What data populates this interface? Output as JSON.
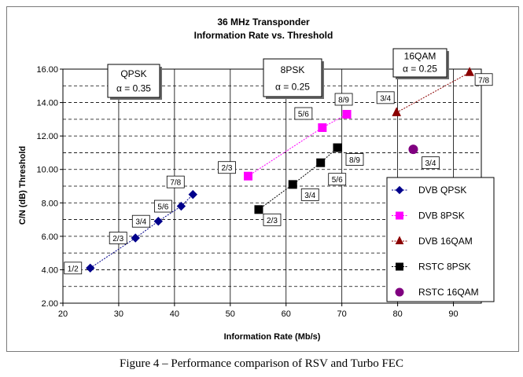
{
  "caption": "Figure 4 – Performance comparison of RSV and Turbo FEC",
  "chart_data": {
    "type": "scatter",
    "title": "36 MHz Transponder",
    "subtitle": "Information Rate vs. Threshold",
    "xlabel": "Information Rate (Mb/s)",
    "ylabel": "C/N (dB) Threshold",
    "xlim": [
      20,
      95
    ],
    "ylim": [
      2,
      16
    ],
    "xticks": [
      "20",
      "30",
      "40",
      "50",
      "60",
      "70",
      "80",
      "90"
    ],
    "yticks": [
      "2.00",
      "4.00",
      "6.00",
      "8.00",
      "10.00",
      "12.00",
      "14.00",
      "16.00"
    ],
    "grid": true,
    "legend_position": "right",
    "series": [
      {
        "name": "DVB QPSK",
        "color": "#00008b",
        "marker": "diamond",
        "line": true,
        "points": [
          {
            "x": 24.9,
            "y": 4.1,
            "label": "1/2"
          },
          {
            "x": 33.0,
            "y": 5.9,
            "label": "2/3"
          },
          {
            "x": 37.1,
            "y": 6.9,
            "label": "3/4"
          },
          {
            "x": 41.2,
            "y": 7.8,
            "label": "5/6"
          },
          {
            "x": 43.3,
            "y": 8.5,
            "label": "7/8"
          }
        ]
      },
      {
        "name": "DVB 8PSK",
        "color": "#ff00ff",
        "marker": "square",
        "line": true,
        "points": [
          {
            "x": 53.2,
            "y": 9.6,
            "label": "2/3"
          },
          {
            "x": 66.5,
            "y": 12.5,
            "label": "5/6"
          },
          {
            "x": 70.9,
            "y": 13.3,
            "label": "8/9"
          }
        ]
      },
      {
        "name": "DVB 16QAM",
        "color": "#8b0000",
        "marker": "triangle",
        "line": true,
        "points": [
          {
            "x": 79.8,
            "y": 13.4,
            "label": "3/4"
          },
          {
            "x": 92.9,
            "y": 15.8,
            "label": "7/8"
          }
        ]
      },
      {
        "name": "RSTC 8PSK",
        "color": "#000000",
        "marker": "square",
        "line": true,
        "points": [
          {
            "x": 55.1,
            "y": 7.6,
            "label": "2/3"
          },
          {
            "x": 61.2,
            "y": 9.1,
            "label": "3/4"
          },
          {
            "x": 66.2,
            "y": 10.4,
            "label": "5/6"
          },
          {
            "x": 69.2,
            "y": 11.3,
            "label": "8/9"
          }
        ]
      },
      {
        "name": "RSTC 16QAM",
        "color": "#800080",
        "marker": "circle",
        "line": false,
        "points": [
          {
            "x": 82.8,
            "y": 11.2,
            "label": "3/4"
          }
        ]
      }
    ],
    "annotations": [
      {
        "line1": "QPSK",
        "line2": "α = 0.35"
      },
      {
        "line1": "8PSK",
        "line2": "α = 0.25"
      },
      {
        "line1": "16QAM",
        "line2": "α = 0.25"
      }
    ]
  }
}
